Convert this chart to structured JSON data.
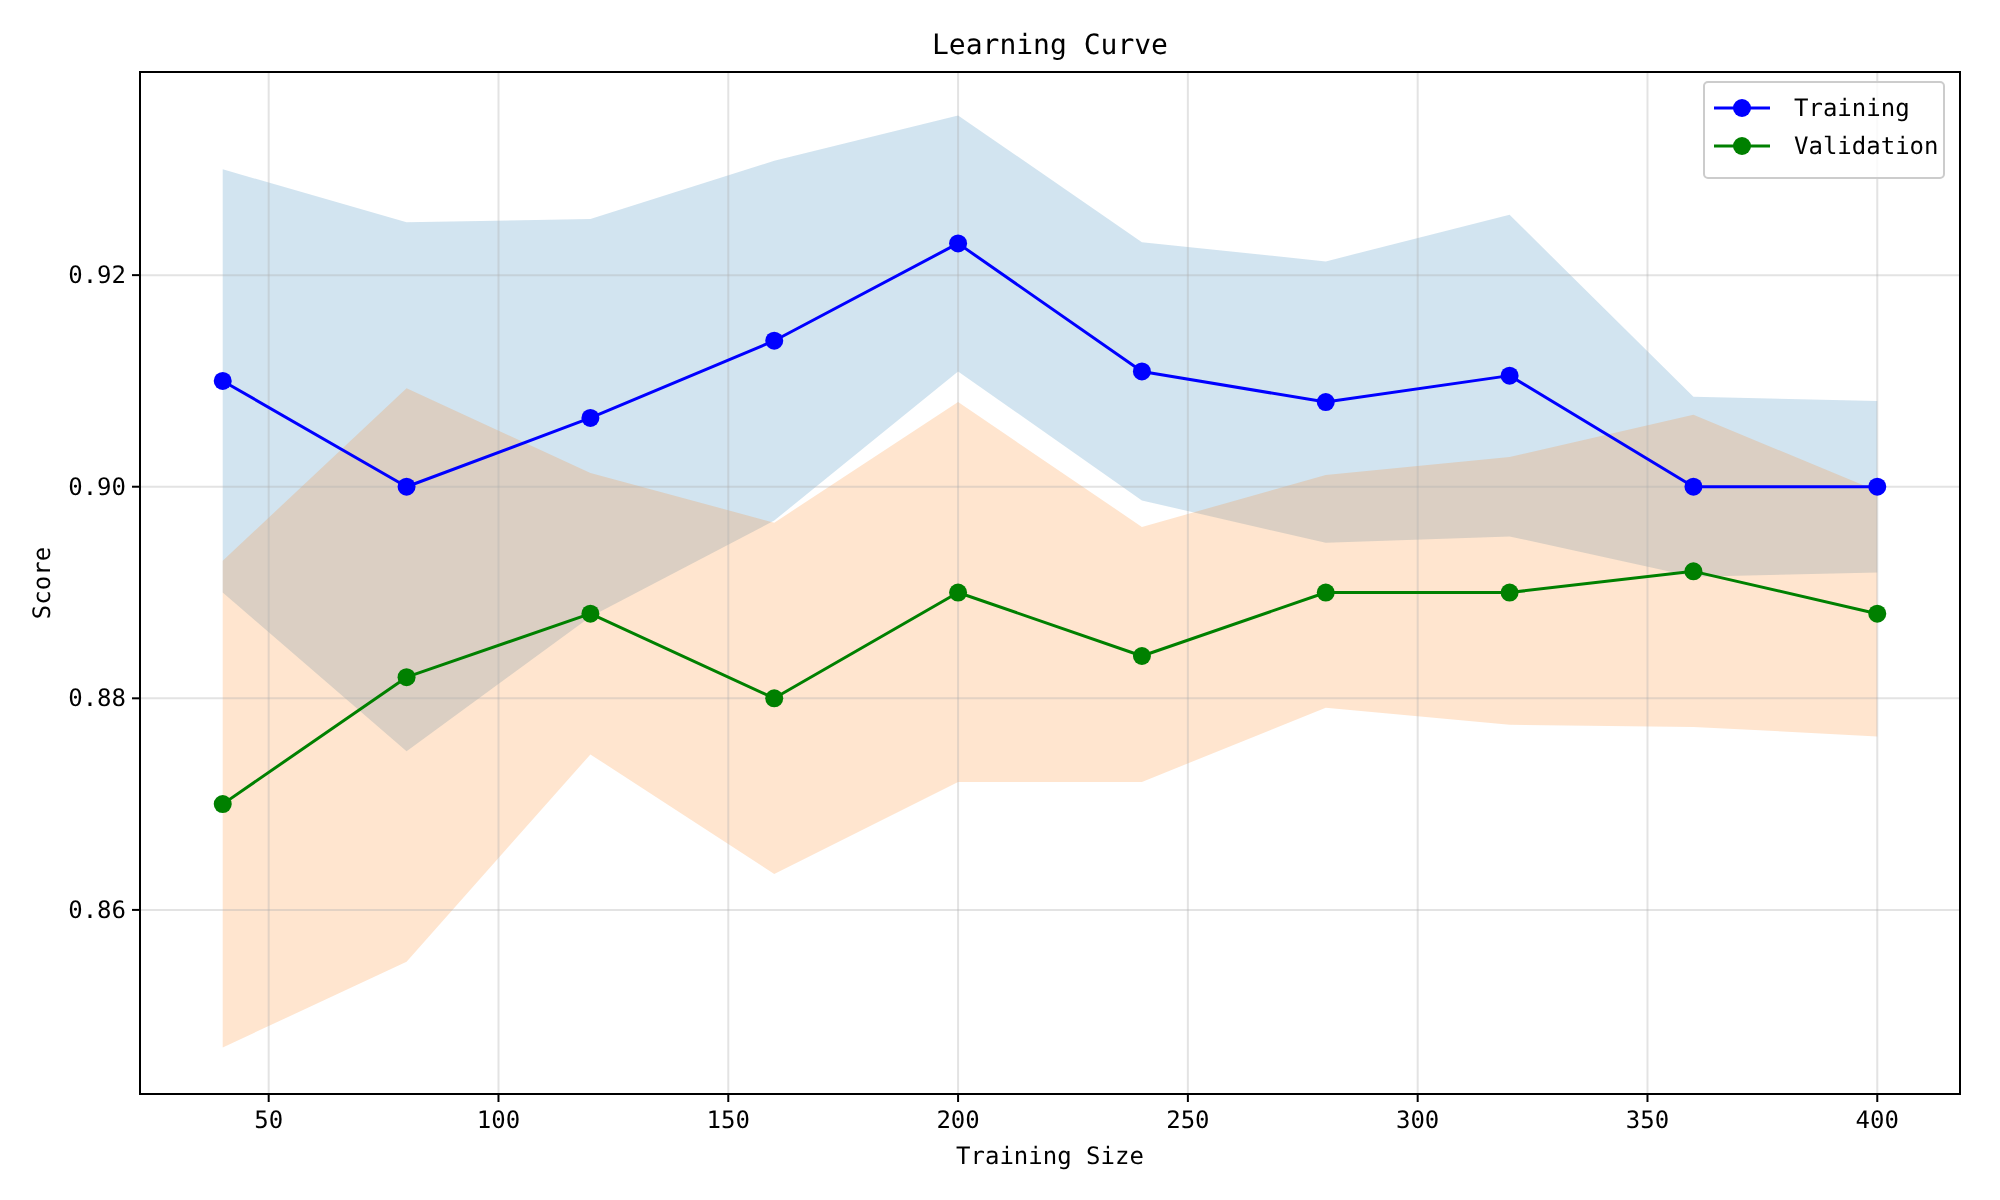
{
  "chart_data": {
    "type": "line",
    "title": "Learning Curve",
    "xlabel": "Training Size",
    "ylabel": "Score",
    "x": [
      40,
      80,
      120,
      160,
      200,
      240,
      280,
      320,
      360,
      400
    ],
    "series": [
      {
        "name": "Training",
        "color": "#0000ff",
        "values": [
          0.91,
          0.9,
          0.9065,
          0.9138,
          0.923,
          0.9109,
          0.908,
          0.9105,
          0.9,
          0.9
        ],
        "upper": [
          0.93,
          0.925,
          0.9253,
          0.9308,
          0.9351,
          0.9231,
          0.9213,
          0.9257,
          0.9085,
          0.9081
        ],
        "lower": [
          0.89,
          0.875,
          0.8877,
          0.8968,
          0.9109,
          0.8987,
          0.8947,
          0.8953,
          0.8915,
          0.8919
        ]
      },
      {
        "name": "Validation",
        "color": "#008000",
        "values": [
          0.87,
          0.882,
          0.888,
          0.88,
          0.89,
          0.884,
          0.89,
          0.89,
          0.892,
          0.888
        ],
        "upper": [
          0.893,
          0.9093,
          0.9013,
          0.8966,
          0.908,
          0.8962,
          0.9011,
          0.9028,
          0.9068,
          0.8996
        ],
        "lower": [
          0.847,
          0.8551,
          0.8747,
          0.8634,
          0.8721,
          0.8721,
          0.8791,
          0.8775,
          0.8773,
          0.8764
        ]
      }
    ],
    "xlim": [
      22,
      418
    ],
    "ylim": [
      0.8426,
      0.9392
    ],
    "xticks": [
      50,
      100,
      150,
      200,
      250,
      300,
      350,
      400
    ],
    "yticks": [
      {
        "value": 0.86,
        "label": "0.86"
      },
      {
        "value": 0.88,
        "label": "0.88"
      },
      {
        "value": 0.9,
        "label": "0.90"
      },
      {
        "value": 0.92,
        "label": "0.92"
      }
    ],
    "grid": true,
    "legend": "top right",
    "marker": "circle",
    "line_style": "solid"
  }
}
